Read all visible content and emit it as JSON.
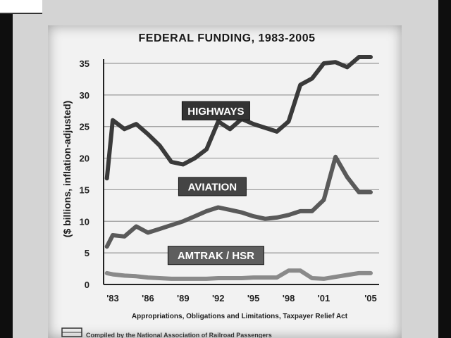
{
  "chart_data": {
    "type": "line",
    "title": "FEDERAL FUNDING, 1983-2005",
    "ylabel": "($ billions, inflation-adjusted)",
    "xlabel": "Appropriations, Obligations and Limitations, Taxpayer Relief Act",
    "ylim": [
      0,
      35
    ],
    "xlim": [
      1982.5,
      2005.5
    ],
    "y_ticks": [
      0,
      5,
      10,
      15,
      20,
      25,
      30,
      35
    ],
    "x_ticks": [
      1983,
      1986,
      1989,
      1992,
      1995,
      1998,
      2001,
      2005
    ],
    "x_tick_labels": [
      "'83",
      "'86",
      "'89",
      "'92",
      "'95",
      "'98",
      "'01",
      "'05"
    ],
    "grid": "horizontal",
    "x": [
      1982,
      1983,
      1984,
      1985,
      1986,
      1987,
      1988,
      1989,
      1990,
      1991,
      1992,
      1993,
      1994,
      1995,
      1996,
      1997,
      1998,
      1999,
      2000,
      2001,
      2002,
      2003,
      2004,
      2005
    ],
    "series": [
      {
        "name": "HIGHWAYS",
        "color": "#3a3a3a",
        "values": [
          16.8,
          26.0,
          24.6,
          25.4,
          23.8,
          22.0,
          19.4,
          19.0,
          20.0,
          21.4,
          25.8,
          24.6,
          26.2,
          25.4,
          24.8,
          24.2,
          25.8,
          31.6,
          32.6,
          35.0,
          35.2,
          34.4,
          36.0,
          36.0
        ]
      },
      {
        "name": "AVIATION",
        "color": "#5a5a5a",
        "values": [
          6.0,
          7.8,
          7.6,
          9.2,
          8.2,
          8.8,
          9.4,
          10.0,
          10.8,
          11.6,
          12.2,
          11.8,
          11.4,
          10.8,
          10.4,
          10.6,
          11.0,
          11.6,
          11.6,
          13.4,
          20.2,
          17.0,
          14.6,
          14.6
        ]
      },
      {
        "name": "AMTRAK / HSR",
        "color": "#8a8a8a",
        "values": [
          1.8,
          1.6,
          1.4,
          1.3,
          1.1,
          1.0,
          0.9,
          0.9,
          0.9,
          0.9,
          1.0,
          1.0,
          1.0,
          1.1,
          1.1,
          1.1,
          2.2,
          2.2,
          1.0,
          0.9,
          1.2,
          1.5,
          1.8,
          1.8
        ]
      }
    ]
  },
  "footer": {
    "note": "Compiled by the National Association of Railroad Passengers"
  }
}
